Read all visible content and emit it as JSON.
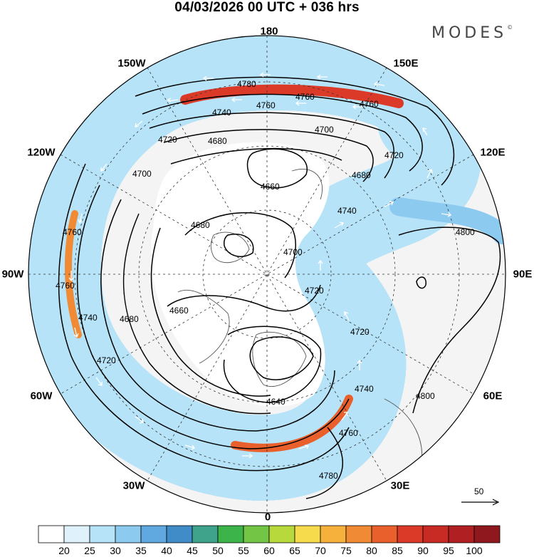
{
  "title": "04/03/2026  00 UTC  + 036 hrs",
  "brand": "MODES",
  "brand_mark": "©",
  "longitude_labels": {
    "lon_180": "180",
    "lon_150w": "150W",
    "lon_150e": "150E",
    "lon_120w": "120W",
    "lon_120e": "120E",
    "lon_90w": "90W",
    "lon_90e": "90E",
    "lon_60w": "60W",
    "lon_60e": "60E",
    "lon_30w": "30W",
    "lon_30e": "30E",
    "lon_0": "0"
  },
  "wind_scale_label": "50",
  "colorbar": {
    "labels": [
      "20",
      "25",
      "30",
      "35",
      "40",
      "45",
      "50",
      "55",
      "60",
      "65",
      "70",
      "75",
      "80",
      "85",
      "90",
      "95",
      "100"
    ],
    "colors": [
      "#ffffff",
      "#dff2fc",
      "#b6e3f7",
      "#8ccaef",
      "#5fa8e0",
      "#3f8cc9",
      "#3fa38c",
      "#3db44a",
      "#72c545",
      "#b8d93b",
      "#f6dc4c",
      "#f6b03c",
      "#f08a34",
      "#e9602d",
      "#db3a28",
      "#c82a24",
      "#b01f22",
      "#8e181d"
    ]
  },
  "contour_labels": {
    "c4780_top": "4780",
    "c4760_top": "4760",
    "c4740_top": "4740",
    "c4760_top_b": "4760",
    "c4760_top_c": "4760",
    "c4720_top": "4720",
    "c4700_top": "4700",
    "c4680_top": "4680",
    "c4660_pole": "4660",
    "c4680_mid": "4680",
    "c4700_mid": "4700",
    "c4680_left": "4680",
    "c4700_left": "4700",
    "c4660_left": "4660",
    "c4760_far_left": "4760",
    "c4760_far_left_b": "4760",
    "c4740_left": "4740",
    "c4720_left": "4720",
    "c4640_low": "4640",
    "c4720_right": "4720",
    "c4720_right_b": "4720",
    "c4740_right": "4740",
    "c4760_right": "4760",
    "c4780_bottom": "4780",
    "c4740_ne": "4740",
    "c4720_ne": "4720",
    "c4680_ne": "4680",
    "c4800_e": "4800",
    "c4800_se": "4800"
  }
}
